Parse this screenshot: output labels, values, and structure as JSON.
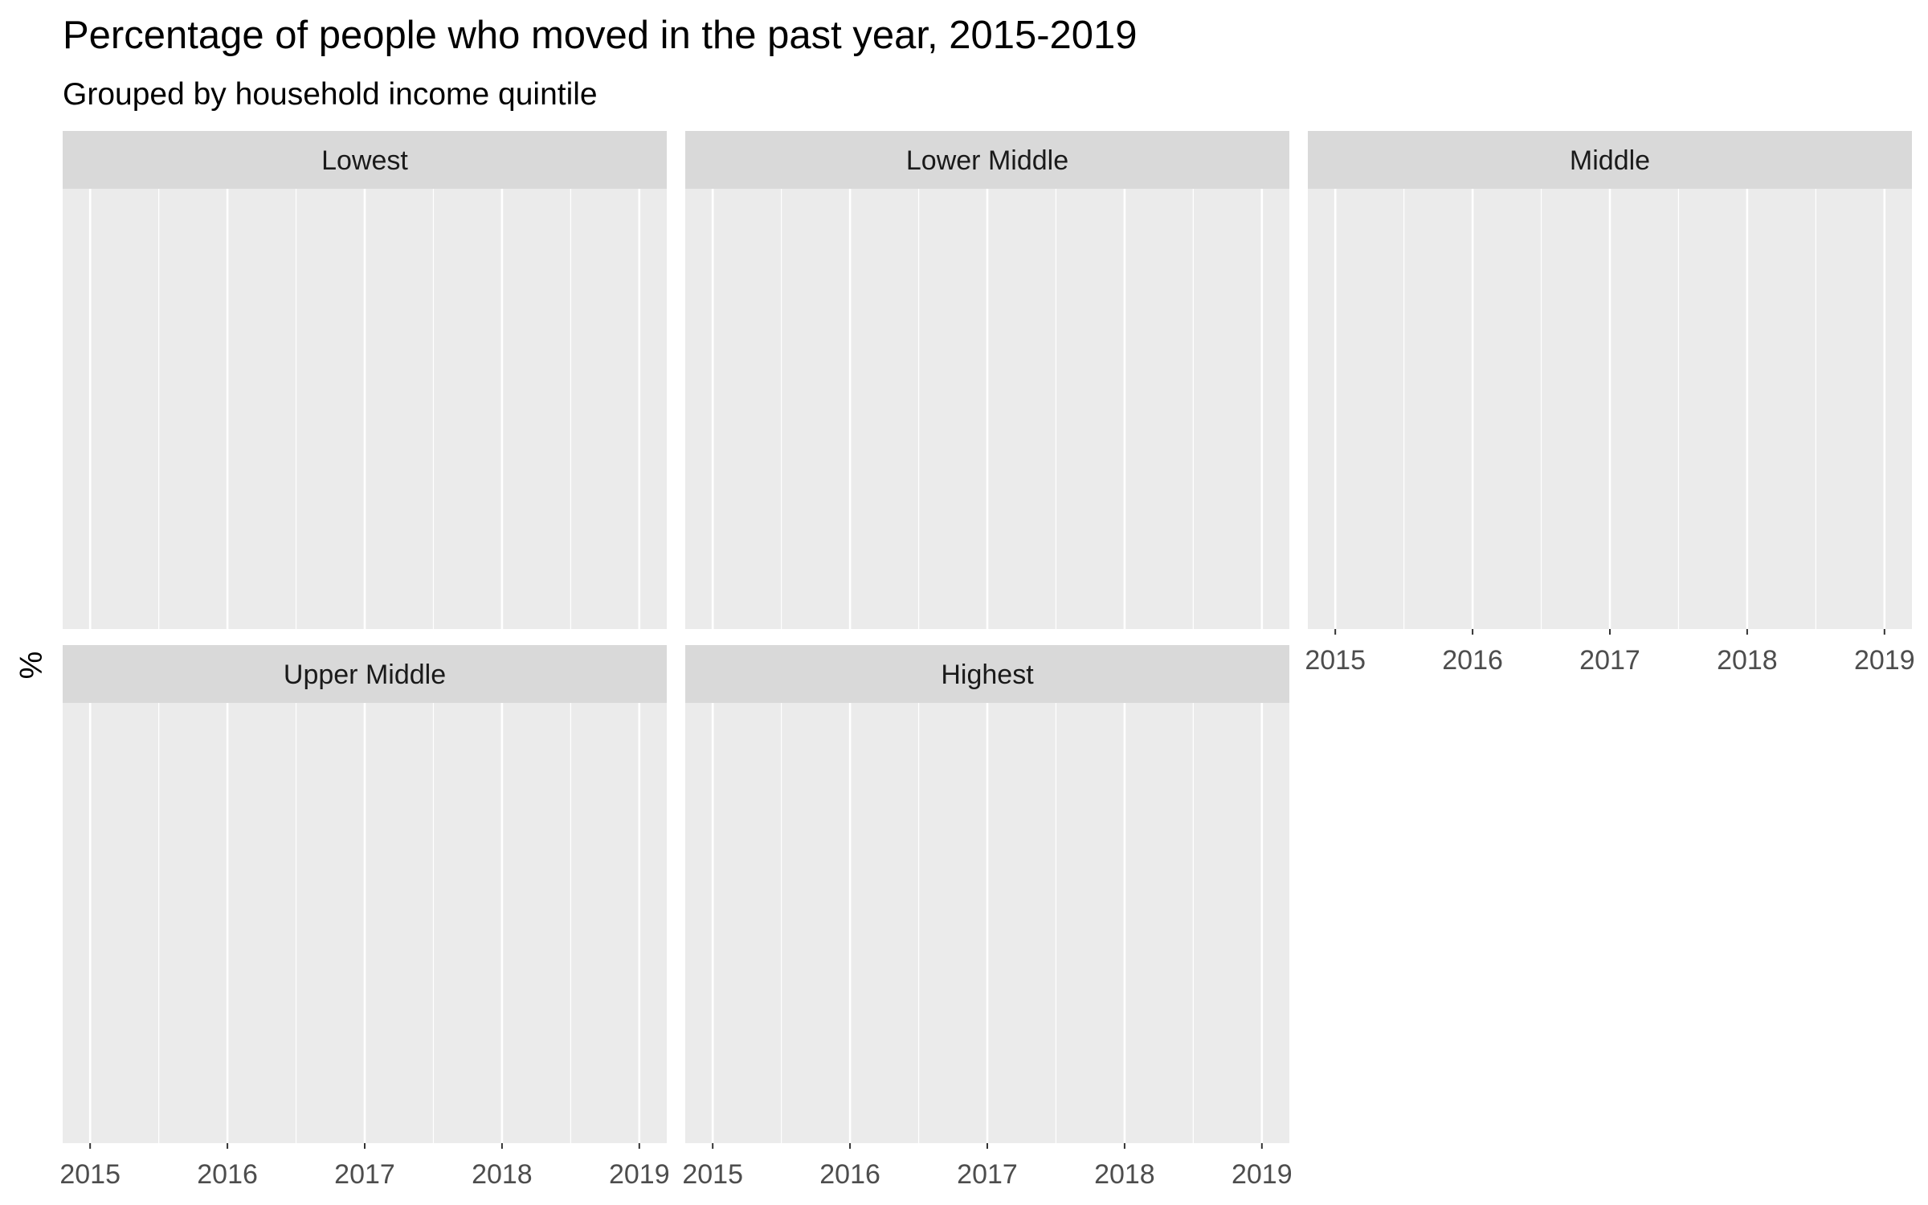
{
  "chart_data": {
    "type": "line",
    "title": "Percentage of people who moved in the past year, 2015-2019",
    "subtitle": "Grouped by household income quintile",
    "xlabel": "",
    "ylabel": "%",
    "x_ticks": [
      "2015",
      "2016",
      "2017",
      "2018",
      "2019"
    ],
    "xlim": [
      2014.8,
      2019.2
    ],
    "grid": true,
    "legend": "none",
    "panels": [
      {
        "label": "Lowest",
        "series": []
      },
      {
        "label": "Lower Middle",
        "series": []
      },
      {
        "label": "Middle",
        "series": []
      },
      {
        "label": "Upper Middle",
        "series": []
      },
      {
        "label": "Highest",
        "series": []
      }
    ],
    "facet_layout": {
      "rows": 2,
      "cols": 3
    },
    "colors": {
      "panel_background": "#EBEBEB",
      "strip_background": "#D9D9D9",
      "grid_line": "#FFFFFF",
      "tick_text": "#4D4D4D",
      "strip_text": "#1A1A1A",
      "title_text": "#000000"
    }
  }
}
